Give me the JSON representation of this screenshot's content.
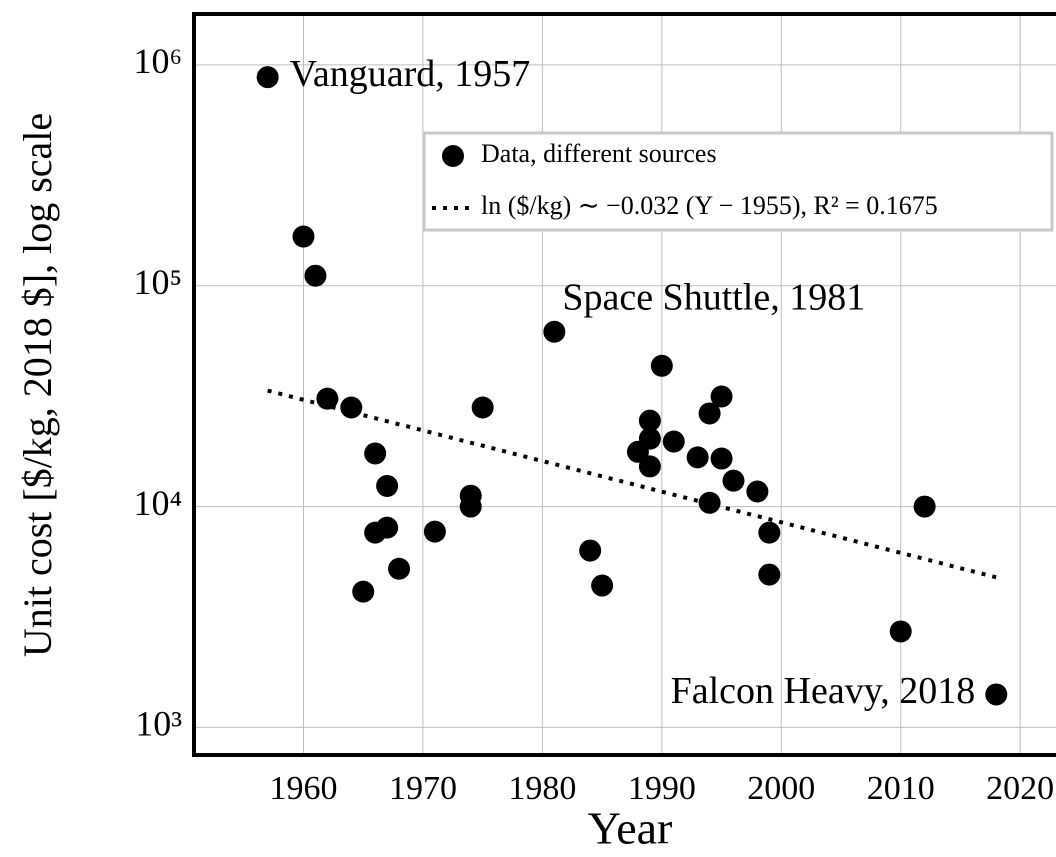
{
  "chart_data": {
    "type": "scatter",
    "xlabel": "Year",
    "ylabel": "Unit cost [$/kg, 2018 $], log scale",
    "xlim": [
      1951,
      2023
    ],
    "xticks": [
      1960,
      1970,
      1980,
      1990,
      2000,
      2010,
      2020
    ],
    "ylim": [
      750,
      1700000
    ],
    "ylog": true,
    "yticks": [
      {
        "value": 1000,
        "label": "10³"
      },
      {
        "value": 10000,
        "label": "10⁴"
      },
      {
        "value": 100000,
        "label": "10⁵"
      },
      {
        "value": 1000000,
        "label": "10⁶"
      }
    ],
    "grid": true,
    "legend": "upper right",
    "series": [
      {
        "name": "Data, different sources",
        "color": "#000000",
        "x": [
          1957,
          1960,
          1961,
          1962,
          1964,
          1965,
          1966,
          1966,
          1967,
          1967,
          1968,
          1971,
          1974,
          1974,
          1975,
          1981,
          1984,
          1985,
          1988,
          1989,
          1989,
          1989,
          1990,
          1991,
          1993,
          1994,
          1994,
          1995,
          1995,
          1996,
          1998,
          1999,
          1999,
          2010,
          2012,
          2018
        ],
        "values": [
          880000,
          167000,
          111000,
          30800,
          28100,
          4120,
          17400,
          7620,
          12400,
          8030,
          5230,
          7700,
          11200,
          10000,
          28100,
          61900,
          6320,
          4390,
          17700,
          24500,
          20300,
          15200,
          43400,
          19700,
          16700,
          26400,
          10400,
          31500,
          16500,
          13100,
          11700,
          7620,
          4920,
          2720,
          10000,
          1410
        ]
      },
      {
        "name": "ln ($/kg) ∼ −0.032 (Y − 1955), R² = 0.1675",
        "color": "#000000",
        "style": "dotted",
        "x": [
          1957,
          2018
        ],
        "values": [
          33500,
          4780
        ]
      }
    ],
    "annotations": [
      "Vanguard, 1957",
      "Space Shuttle, 1981",
      "Falcon Heavy, 2018"
    ]
  }
}
